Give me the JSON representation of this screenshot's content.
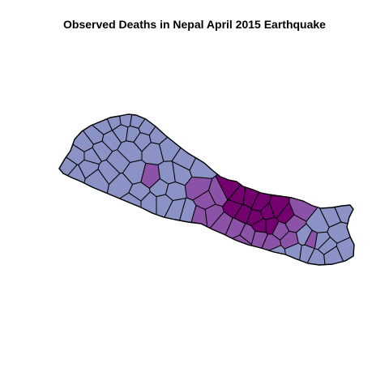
{
  "title": "Observed Deaths in Nepal April 2015 Earthquake",
  "map": {
    "region": "Nepal",
    "unit": "district",
    "fill_classes": {
      "low": "#8B93C6",
      "medium": "#8C52A8",
      "high": "#73006E"
    },
    "border_color": "#000000",
    "background": "#ffffff",
    "legend": "none",
    "axes": "none"
  }
}
